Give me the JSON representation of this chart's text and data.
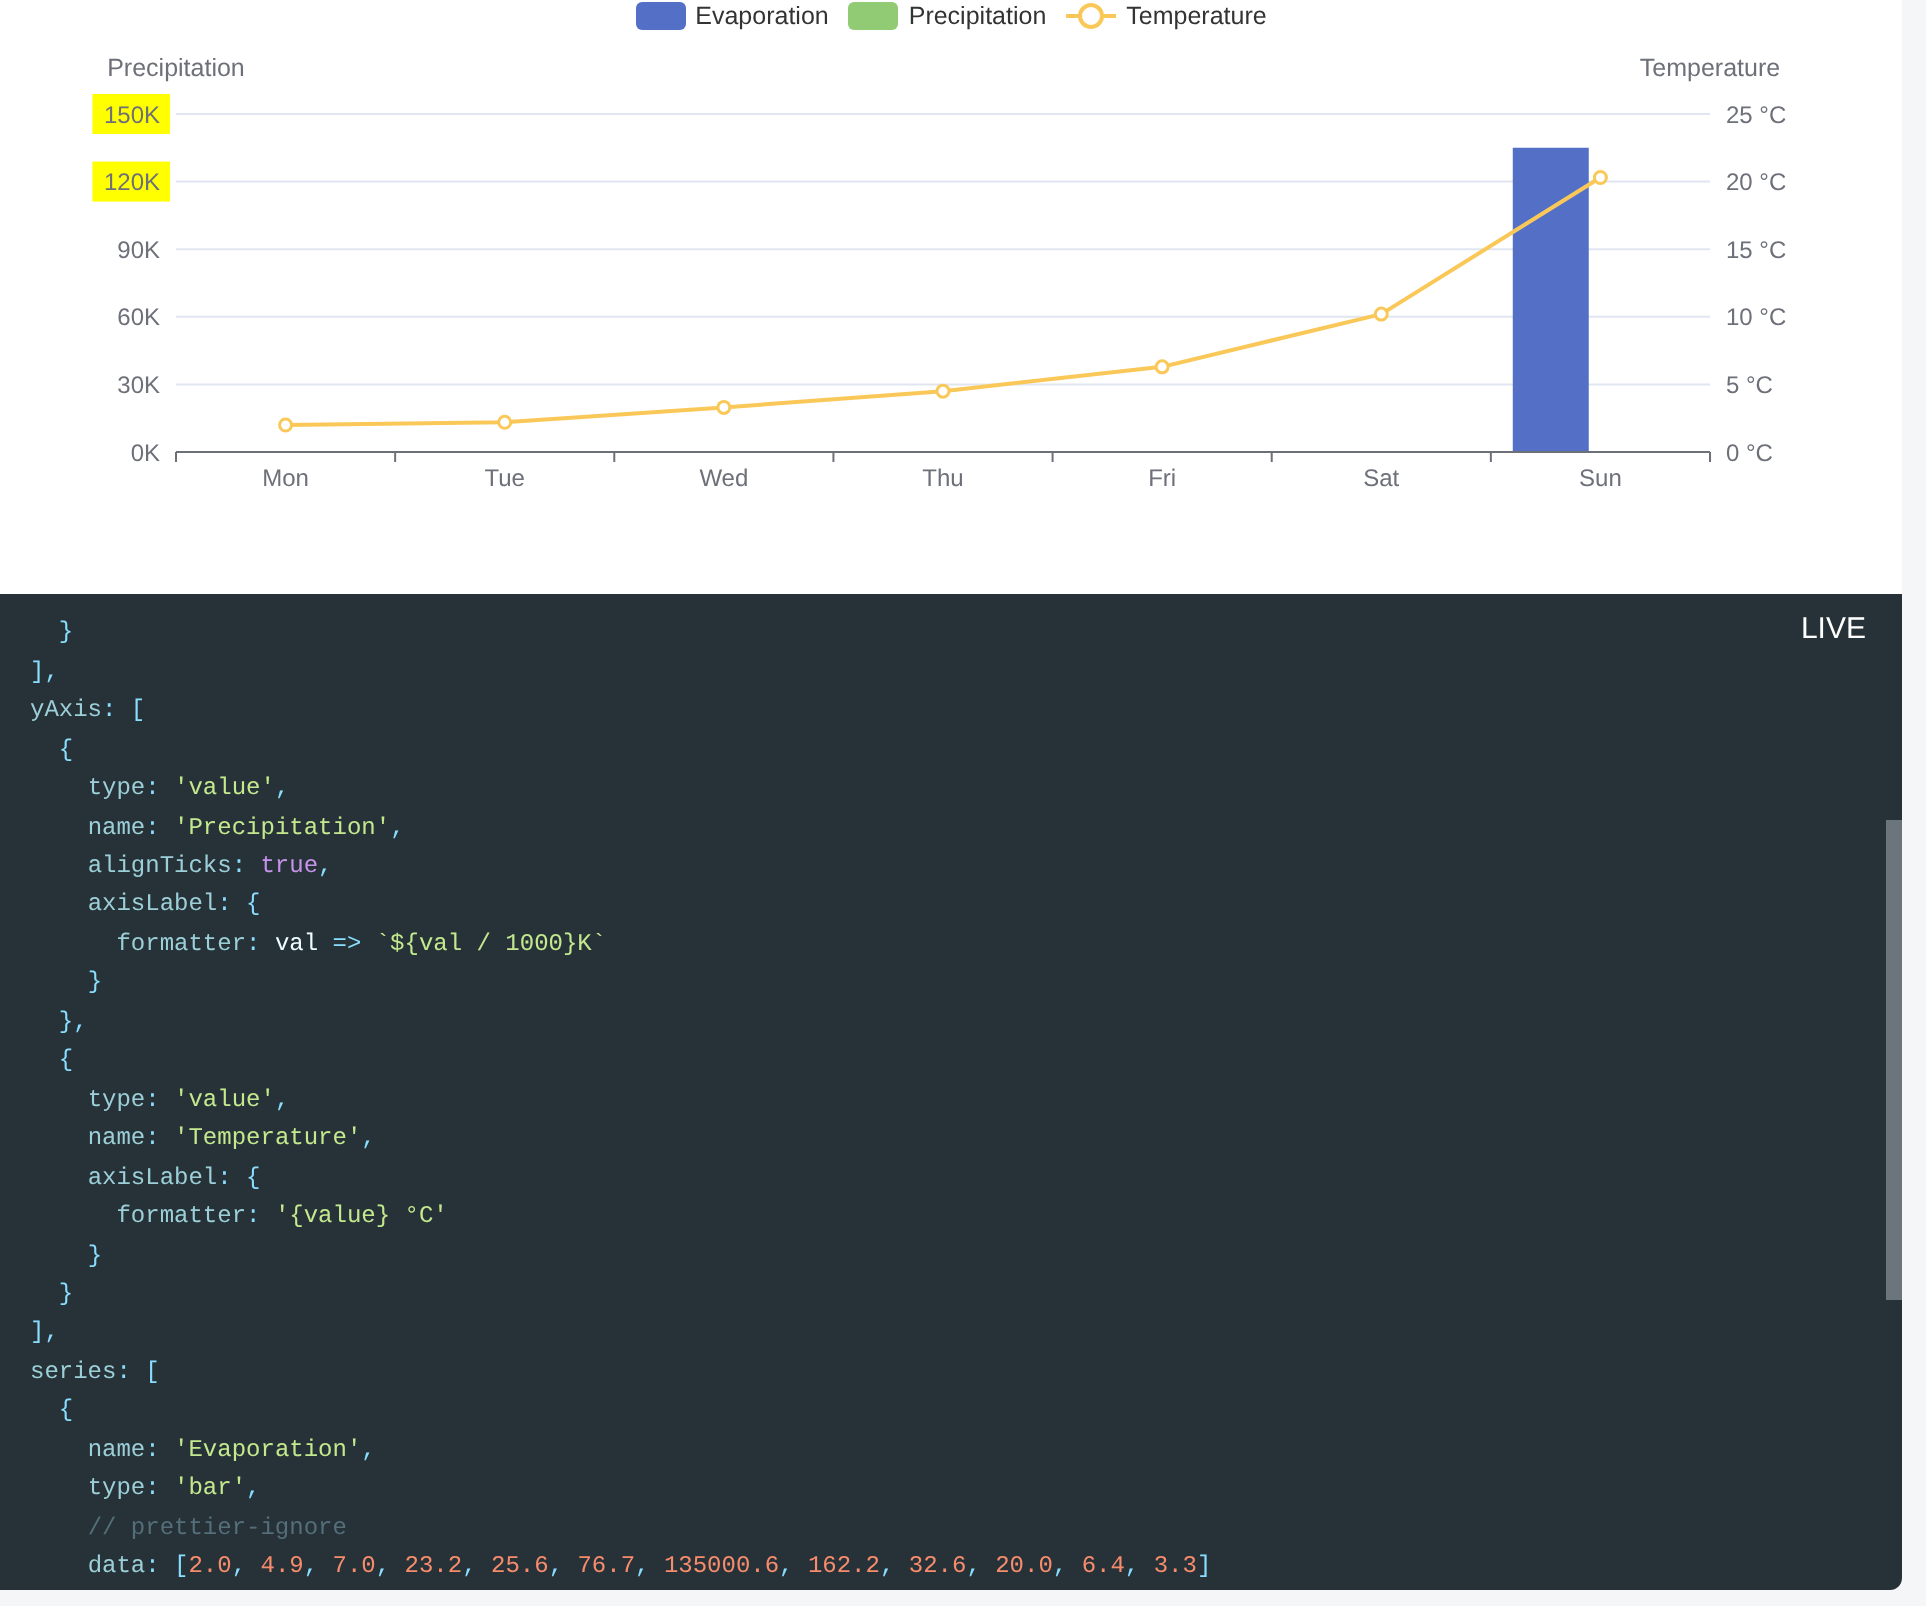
{
  "chart_data": {
    "type": "bar",
    "categories": [
      "Mon",
      "Tue",
      "Wed",
      "Thu",
      "Fri",
      "Sat",
      "Sun"
    ],
    "series": [
      {
        "name": "Evaporation",
        "color": "#5470c6",
        "values": [
          2.0,
          4.9,
          7.0,
          23.2,
          25.6,
          76.7,
          135000.6
        ]
      },
      {
        "name": "Precipitation",
        "color": "#91cc75",
        "values": [
          0,
          0,
          0,
          0,
          0,
          0,
          0
        ]
      },
      {
        "name": "Temperature",
        "type": "line",
        "axis": "y2",
        "color": "#fac858",
        "values": [
          2.0,
          2.2,
          3.3,
          4.5,
          6.3,
          10.2,
          20.3
        ]
      }
    ],
    "ylabel": "Precipitation",
    "y2label": "Temperature",
    "ylim": [
      0,
      150000
    ],
    "yticks": [
      {
        "value": 0,
        "label": "0K"
      },
      {
        "value": 30000,
        "label": "30K"
      },
      {
        "value": 60000,
        "label": "60K"
      },
      {
        "value": 90000,
        "label": "90K"
      },
      {
        "value": 120000,
        "label": "120K"
      },
      {
        "value": 150000,
        "label": "150K"
      }
    ],
    "y2lim": [
      0,
      25
    ],
    "y2ticks": [
      {
        "value": 0,
        "label": "0 °C"
      },
      {
        "value": 5,
        "label": "5 °C"
      },
      {
        "value": 10,
        "label": "10 °C"
      },
      {
        "value": 15,
        "label": "15 °C"
      },
      {
        "value": 20,
        "label": "20 °C"
      },
      {
        "value": 25,
        "label": "25 °C"
      }
    ],
    "grid": "y",
    "legend": "top",
    "marker": "circle",
    "annotations": [
      "LIVE",
      "  }",
      "],",
      "yAxis: [",
      "  {",
      "    type: 'value',",
      "    name: 'Precipitation',",
      "    alignTicks: true,",
      "    axisLabel: {",
      "      formatter: val => `${val / 1000}K`",
      "    }",
      "  },",
      "  {",
      "    type: 'value',",
      "    name: 'Temperature',",
      "    axisLabel: {",
      "      formatter: '{value} °C'",
      "    }",
      "  }",
      "],",
      "series: [",
      "  {",
      "    name: 'Evaporation',",
      "    type: 'bar',",
      "    // prettier-ignore",
      "    data: [2.0, 4.9, 7.0, 23.2, 25.6, 76.7, 135000.6, 162.2, 32.6, 20.0, 6.4, 3.3]"
    ]
  }
}
